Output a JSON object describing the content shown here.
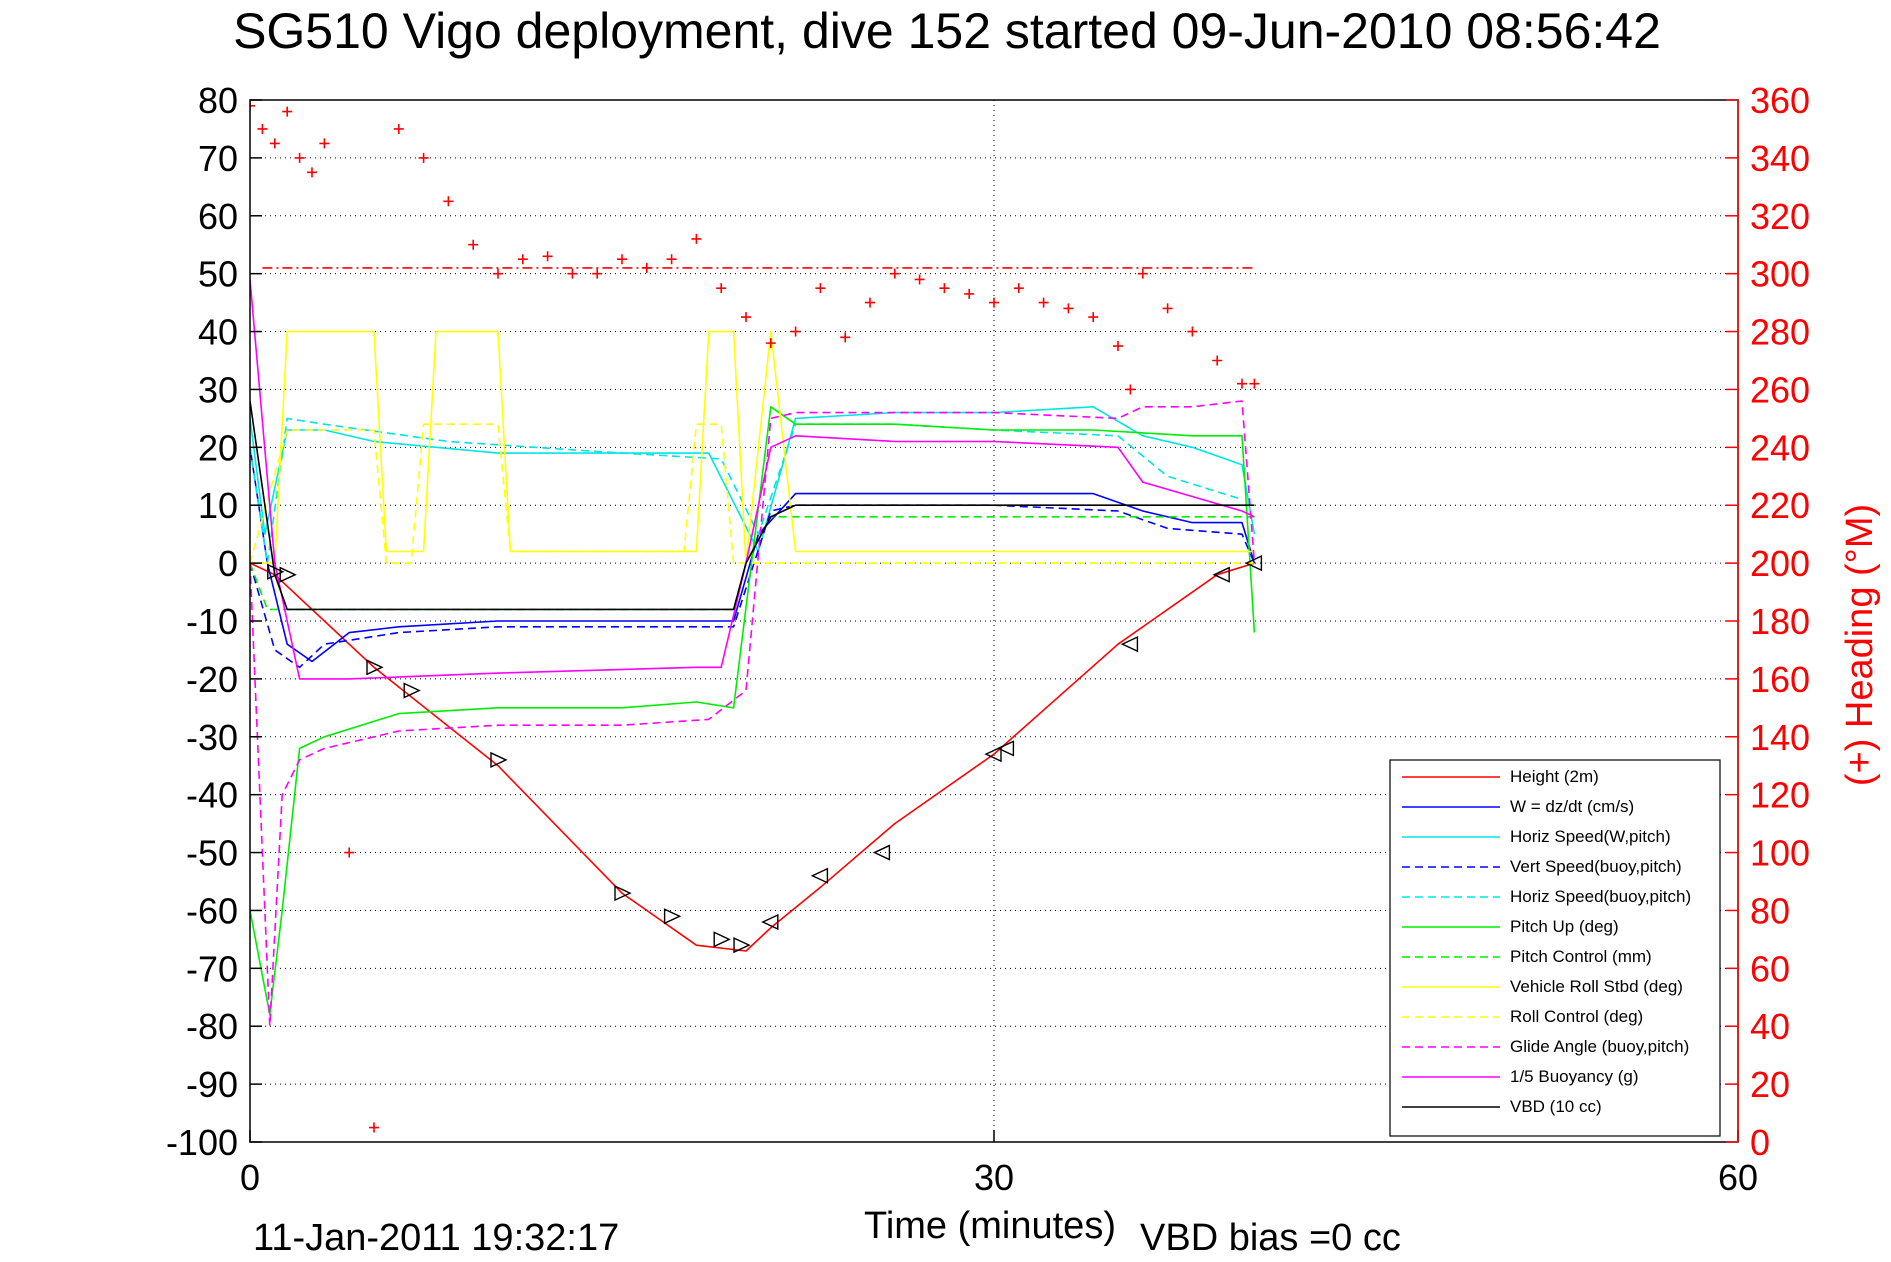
{
  "chart_data": {
    "type": "line",
    "title": "SG510 Vigo deployment, dive 152 started 09-Jun-2010 08:56:42",
    "xlabel": "Time (minutes)",
    "ylabel": "",
    "y2label": "(+) Heading (°M)",
    "xlim": [
      0,
      60
    ],
    "ylim": [
      -100,
      80
    ],
    "y2lim": [
      0,
      360
    ],
    "grid": true,
    "legend_position": "bottom-right",
    "x_ticks": [
      "0",
      "30",
      "60"
    ],
    "y_ticks": [
      "80",
      "70",
      "60",
      "50",
      "40",
      "30",
      "20",
      "10",
      "0",
      "-10",
      "-20",
      "-30",
      "-40",
      "-50",
      "-60",
      "-70",
      "-80",
      "-90",
      "-100"
    ],
    "y2_ticks": [
      "360",
      "340",
      "320",
      "300",
      "280",
      "260",
      "240",
      "220",
      "200",
      "180",
      "160",
      "140",
      "120",
      "100",
      "80",
      "60",
      "40",
      "20",
      "0"
    ],
    "footer_timestamp": "11-Jan-2011 19:32:17",
    "footer_note": "VBD bias =0 cc",
    "series": [
      {
        "name": "Height (2m)",
        "color": "#ff0000",
        "style": "solid",
        "x": [
          0,
          1,
          5,
          10,
          15,
          18,
          20,
          21,
          23,
          26,
          30,
          35,
          39,
          40.5
        ],
        "y": [
          0,
          -2,
          -18,
          -35,
          -57,
          -66,
          -67,
          -63,
          -56,
          -45,
          -33,
          -14,
          -2,
          0
        ]
      },
      {
        "name": "W = dz/dt (cm/s)",
        "color": "#0000ff",
        "style": "solid",
        "x": [
          0,
          0.7,
          1.5,
          2.5,
          4,
          6,
          10,
          15,
          19.5,
          20.5,
          22,
          26,
          30,
          34,
          36,
          38,
          40,
          40.5
        ],
        "y": [
          20,
          0,
          -14,
          -17,
          -12,
          -11,
          -10,
          -10,
          -10,
          5,
          12,
          12,
          12,
          12,
          9,
          7,
          7,
          0
        ]
      },
      {
        "name": "Horiz Speed(W,pitch)",
        "color": "#00e5e5",
        "style": "solid",
        "x": [
          0,
          0.6,
          1.5,
          3,
          5,
          10,
          15,
          18.5,
          20.5,
          22,
          26,
          30,
          34,
          36,
          38,
          40,
          40.5
        ],
        "y": [
          25,
          5,
          23,
          23,
          21,
          19,
          19,
          19,
          2,
          25,
          26,
          26,
          27,
          22,
          20,
          17,
          5
        ]
      },
      {
        "name": "Vert Speed(buoy,pitch)",
        "color": "#0000ff",
        "style": "dashed",
        "x": [
          0,
          1,
          2,
          3,
          6,
          10,
          15,
          19.5,
          21,
          22,
          26,
          30,
          35,
          37,
          40,
          40.5
        ],
        "y": [
          0,
          -15,
          -18,
          -14,
          -12,
          -11,
          -11,
          -11,
          9,
          10,
          10,
          10,
          9,
          6,
          5,
          0
        ]
      },
      {
        "name": "Horiz Speed(buoy,pitch)",
        "color": "#00e5e5",
        "style": "dashed",
        "x": [
          0,
          0.7,
          1.5,
          3,
          8,
          15,
          19,
          20.5,
          22,
          26,
          30,
          35,
          37,
          40
        ],
        "y": [
          20,
          0,
          25,
          24,
          21,
          19,
          18,
          5,
          24,
          24,
          23,
          22,
          15,
          11
        ]
      },
      {
        "name": "Pitch Up (deg)",
        "color": "#00ee00",
        "style": "solid",
        "x": [
          0,
          0.8,
          1.3,
          2,
          3,
          6,
          10,
          15,
          18,
          19.5,
          21,
          22,
          26,
          30,
          34,
          38,
          40,
          40.5
        ],
        "y": [
          -60,
          -78,
          -60,
          -32,
          -30,
          -26,
          -25,
          -25,
          -24,
          -25,
          27,
          24,
          24,
          23,
          23,
          22,
          22,
          -12
        ]
      },
      {
        "name": "Pitch Control (mm)",
        "color": "#00ee00",
        "style": "dashed",
        "x": [
          0,
          0.7,
          1.5,
          19.5,
          20,
          21,
          22,
          40.5
        ],
        "y": [
          0,
          -8,
          -8,
          -8,
          0,
          8,
          8,
          8
        ]
      },
      {
        "name": "Vehicle Roll Stbd (deg)",
        "color": "#ffff00",
        "style": "solid",
        "x": [
          0,
          1,
          1.5,
          5,
          5.5,
          7,
          7.5,
          10,
          10.5,
          18,
          18.5,
          19.5,
          20,
          21,
          22,
          40.5
        ],
        "y": [
          0,
          0,
          40,
          40,
          2,
          2,
          40,
          40,
          2,
          2,
          40,
          40,
          0,
          40,
          2,
          2
        ]
      },
      {
        "name": "Roll Control (deg)",
        "color": "#ffff00",
        "style": "dashed",
        "x": [
          0,
          1.5,
          5,
          5.5,
          6.5,
          7,
          10,
          10.5,
          17.5,
          18,
          19,
          19.5,
          20,
          22,
          40.5
        ],
        "y": [
          0,
          23,
          23,
          0,
          0,
          24,
          24,
          2,
          2,
          24,
          24,
          0,
          0,
          0,
          0
        ]
      },
      {
        "name": "Glide Angle (buoy,pitch)",
        "color": "#ff00ff",
        "style": "dashed",
        "x": [
          0,
          0.8,
          1.3,
          2,
          3,
          6,
          10,
          15,
          18.5,
          20,
          21,
          22,
          26,
          30,
          35,
          36,
          38,
          40,
          40.5
        ],
        "y": [
          0,
          -80,
          -40,
          -34,
          -32,
          -29,
          -28,
          -28,
          -27,
          -22,
          25,
          26,
          26,
          26,
          25,
          27,
          27,
          28,
          0
        ]
      },
      {
        "name": "1/5 Buoyancy (g)",
        "color": "#ff00ff",
        "style": "solid",
        "x": [
          0,
          1,
          2,
          4,
          10,
          18,
          19,
          20,
          21,
          22,
          26,
          30,
          35,
          36,
          40,
          40.5
        ],
        "y": [
          49,
          0,
          -20,
          -20,
          -19,
          -18,
          -18,
          0,
          20,
          22,
          21,
          21,
          20,
          14,
          9,
          8
        ]
      },
      {
        "name": "VBD (10 cc)",
        "color": "#000000",
        "style": "solid",
        "x": [
          0,
          1,
          1.5,
          19.5,
          20,
          21,
          22,
          40.5
        ],
        "y": [
          28,
          -2,
          -8,
          -8,
          0,
          8,
          10,
          10
        ]
      },
      {
        "name": "(+) Heading (°M)",
        "color": "#ff0000",
        "style": "markers",
        "axis": "right",
        "x": [
          0,
          0.5,
          1,
          1.5,
          2,
          2.5,
          3,
          3.5,
          4,
          5,
          6,
          7,
          8,
          9,
          10,
          11,
          12,
          13,
          14,
          15,
          16,
          17,
          18,
          19,
          20,
          21,
          22,
          23,
          24,
          25,
          26,
          27,
          28,
          29,
          30,
          31,
          32,
          33,
          34,
          35,
          35.5,
          36,
          37,
          38,
          39,
          40,
          40.5
        ],
        "y": [
          358,
          350,
          345,
          356,
          340,
          335,
          345,
          362,
          100,
          5,
          350,
          340,
          325,
          310,
          300,
          305,
          306,
          300,
          300,
          305,
          302,
          305,
          312,
          295,
          285,
          276,
          280,
          295,
          278,
          290,
          300,
          298,
          295,
          293,
          290,
          295,
          290,
          288,
          285,
          275,
          260,
          300,
          288,
          280,
          270,
          262,
          262
        ]
      },
      {
        "name": "",
        "color": "#ff0000",
        "style": "dashdot",
        "axis": "right",
        "x": [
          0.5,
          40.5
        ],
        "y": [
          302,
          302
        ]
      }
    ],
    "markers": {
      "color": "#000000",
      "down": {
        "x": [
          1,
          1.5,
          5,
          6.5,
          10,
          15,
          17,
          19,
          19.8
        ],
        "y": [
          -1.5,
          -2,
          -18,
          -22,
          -34,
          -57,
          -61,
          -65,
          -66
        ]
      },
      "up": {
        "x": [
          21,
          23,
          25.5,
          30,
          30.5,
          35.5,
          39.2,
          40.5
        ],
        "y": [
          -62,
          -54,
          -50,
          -33,
          -32,
          -14,
          -2,
          0
        ]
      }
    }
  }
}
